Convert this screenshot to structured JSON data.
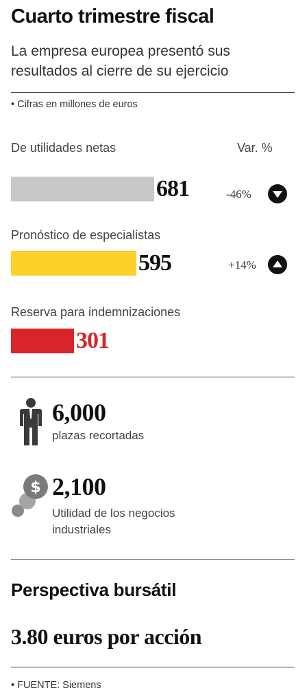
{
  "title": "Cuarto trimestre fiscal",
  "subtitle": "La empresa europea presentó sus resultados al cierre de su ejercicio",
  "units_note": "Cifras en millones de euros",
  "var_header": "Var. %",
  "chart_data": {
    "type": "bar",
    "orientation": "horizontal",
    "title": "Cuarto trimestre fiscal",
    "subtitle": "La empresa europea presentó sus resultados al cierre de su ejercicio",
    "categories": [
      "De utilidades netas",
      "Pronóstico de especialistas",
      "Reserva para indemnizaciones"
    ],
    "values": [
      681,
      595,
      301
    ],
    "value_labels": [
      "681",
      "595",
      "301"
    ],
    "change_labels": [
      "-46%",
      "+14%",
      null
    ],
    "change_direction": [
      "down",
      "up",
      null
    ],
    "colors": [
      "#c8c8c8",
      "#fcd12a",
      "#d7252a"
    ],
    "value_label_colors": [
      "#111111",
      "#111111",
      "#d7252a"
    ],
    "units": "Cifras en millones de euros",
    "xlim": [
      0,
      681
    ],
    "grid": false,
    "legend": "none"
  },
  "stats": [
    {
      "value": "6,000",
      "label": "plazas recortadas",
      "icon": "person-icon"
    },
    {
      "value": "2,100",
      "label": "Utilidad de los negocios industriales",
      "icon": "coins-dollar-icon"
    }
  ],
  "outlook": {
    "title": "Perspectiva bursátil",
    "price": "3.80 euros por acción"
  },
  "source": "FUENTE: Siemens"
}
